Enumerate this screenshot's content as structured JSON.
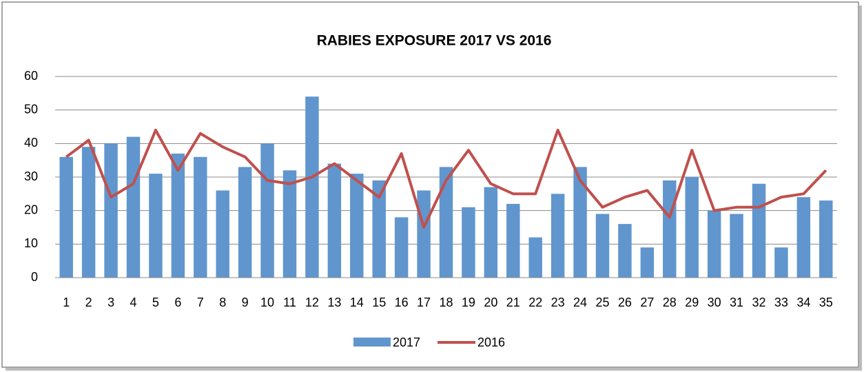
{
  "chart_data": {
    "type": "combo",
    "title": "RABIES EXPOSURE 2017 VS 2016",
    "categories": [
      "1",
      "2",
      "3",
      "4",
      "5",
      "6",
      "7",
      "8",
      "9",
      "10",
      "11",
      "12",
      "13",
      "14",
      "15",
      "16",
      "17",
      "18",
      "19",
      "20",
      "21",
      "22",
      "23",
      "24",
      "25",
      "26",
      "27",
      "28",
      "29",
      "30",
      "31",
      "32",
      "33",
      "34",
      "35"
    ],
    "series": [
      {
        "name": "2017",
        "type": "bar",
        "color": "#6096cd",
        "values": [
          36,
          39,
          40,
          42,
          31,
          37,
          36,
          26,
          33,
          40,
          32,
          54,
          34,
          31,
          29,
          18,
          26,
          33,
          21,
          27,
          22,
          12,
          25,
          33,
          19,
          16,
          9,
          29,
          30,
          20,
          19,
          28,
          9,
          24,
          23
        ]
      },
      {
        "name": "2016",
        "type": "line",
        "color": "#c0504d",
        "values": [
          36,
          41,
          24,
          28,
          44,
          32,
          43,
          39,
          36,
          29,
          28,
          30,
          34,
          29,
          24,
          37,
          15,
          29,
          38,
          28,
          25,
          25,
          44,
          29,
          21,
          24,
          26,
          18,
          38,
          20,
          21,
          21,
          24,
          25,
          32
        ]
      }
    ],
    "ylim": [
      0,
      60
    ],
    "yticks": [
      0,
      10,
      20,
      30,
      40,
      50,
      60
    ],
    "grid": true,
    "legend": "bottom"
  }
}
